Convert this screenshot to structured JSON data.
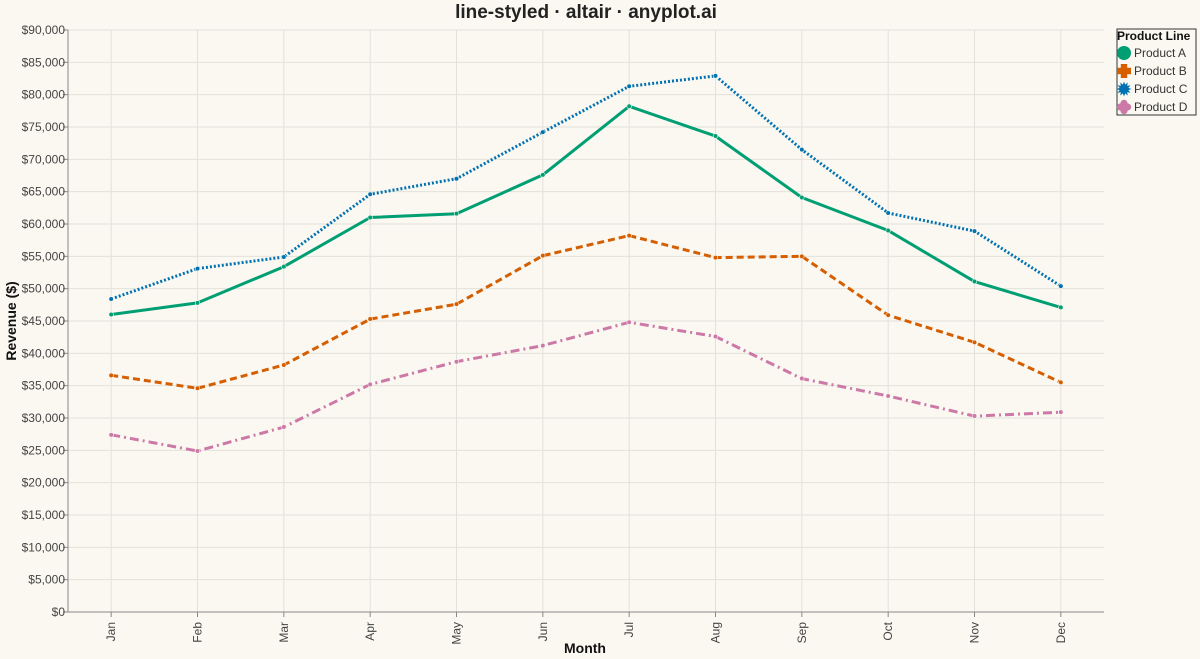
{
  "chart_data": {
    "type": "line",
    "title": "line-styled · altair · anyplot.ai",
    "xlabel": "Month",
    "ylabel": "Revenue ($)",
    "ylim": [
      0,
      90000
    ],
    "yticks": [
      0,
      5000,
      10000,
      15000,
      20000,
      25000,
      30000,
      35000,
      40000,
      45000,
      50000,
      55000,
      60000,
      65000,
      70000,
      75000,
      80000,
      85000,
      90000
    ],
    "ytick_labels": [
      "$0",
      "$5,000",
      "$10,000",
      "$15,000",
      "$20,000",
      "$25,000",
      "$30,000",
      "$35,000",
      "$40,000",
      "$45,000",
      "$50,000",
      "$55,000",
      "$60,000",
      "$65,000",
      "$70,000",
      "$75,000",
      "$80,000",
      "$85,000",
      "$90,000"
    ],
    "categories": [
      "Jan",
      "Feb",
      "Mar",
      "Apr",
      "May",
      "Jun",
      "Jul",
      "Aug",
      "Sep",
      "Oct",
      "Nov",
      "Dec"
    ],
    "grid": true,
    "legend": {
      "title": "Product Line",
      "placement": "top-right"
    },
    "series": [
      {
        "name": "Product A",
        "color": "#009e73",
        "style": "solid",
        "marker": "circle",
        "values": [
          46000,
          47800,
          53400,
          61000,
          61600,
          67600,
          78200,
          73600,
          64100,
          59000,
          51100,
          47100
        ]
      },
      {
        "name": "Product B",
        "color": "#d55e00",
        "style": "dashed",
        "marker": "cross",
        "values": [
          36600,
          34600,
          38200,
          45300,
          47600,
          55100,
          58200,
          54800,
          55000,
          45900,
          41700,
          35500
        ]
      },
      {
        "name": "Product C",
        "color": "#0072b2",
        "style": "dotted",
        "marker": "star",
        "values": [
          48400,
          53100,
          54900,
          64600,
          67000,
          74200,
          81300,
          82900,
          71500,
          61700,
          58900,
          50400
        ]
      },
      {
        "name": "Product D",
        "color": "#cc79a7",
        "style": "dashdot",
        "marker": "flower",
        "values": [
          27400,
          24900,
          28600,
          35200,
          38700,
          41200,
          44800,
          42600,
          36100,
          33400,
          30300,
          30900
        ]
      }
    ]
  }
}
